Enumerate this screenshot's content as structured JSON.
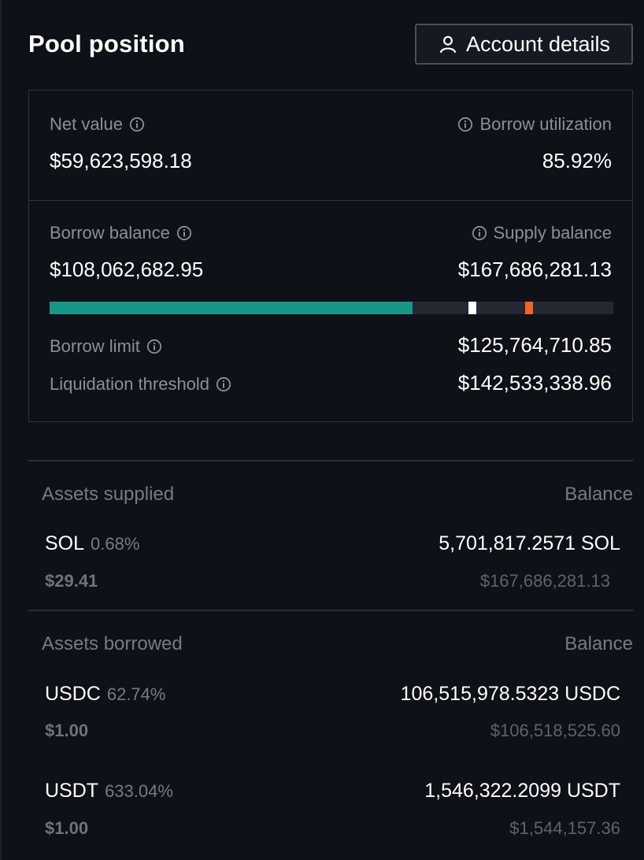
{
  "header": {
    "title": "Pool position",
    "account_button_label": "Account details"
  },
  "stats": {
    "net_value_label": "Net value",
    "net_value": "$59,623,598.18",
    "borrow_utilization_label": "Borrow utilization",
    "borrow_utilization": "85.92%",
    "borrow_balance_label": "Borrow balance",
    "borrow_balance": "$108,062,682.95",
    "supply_balance_label": "Supply balance",
    "supply_balance": "$167,686,281.13",
    "borrow_limit_label": "Borrow limit",
    "borrow_limit": "$125,764,710.85",
    "liquidation_threshold_label": "Liquidation threshold",
    "liquidation_threshold": "$142,533,338.96"
  },
  "utilization_bar": {
    "borrow_fraction": 0.6444,
    "borrow_limit_fraction": 0.75,
    "liquidation_fraction": 0.85,
    "colors": {
      "fill": "#19968a",
      "limit_marker": "#ffffff",
      "liquidation_marker": "#f26522",
      "track": "#242832"
    }
  },
  "supplied": {
    "heading": "Assets supplied",
    "balance_heading": "Balance",
    "assets": [
      {
        "symbol": "SOL",
        "pct": "0.68%",
        "price": "$29.41",
        "balance": "5,701,817.2571 SOL",
        "usd": "$167,686,281.13"
      }
    ]
  },
  "borrowed": {
    "heading": "Assets borrowed",
    "balance_heading": "Balance",
    "assets": [
      {
        "symbol": "USDC",
        "pct": "62.74%",
        "price": "$1.00",
        "balance": "106,515,978.5323 USDC",
        "usd": "$106,518,525.60"
      },
      {
        "symbol": "USDT",
        "pct": "633.04%",
        "price": "$1.00",
        "balance": "1,546,322.2099 USDT",
        "usd": "$1,544,157.36"
      }
    ]
  }
}
